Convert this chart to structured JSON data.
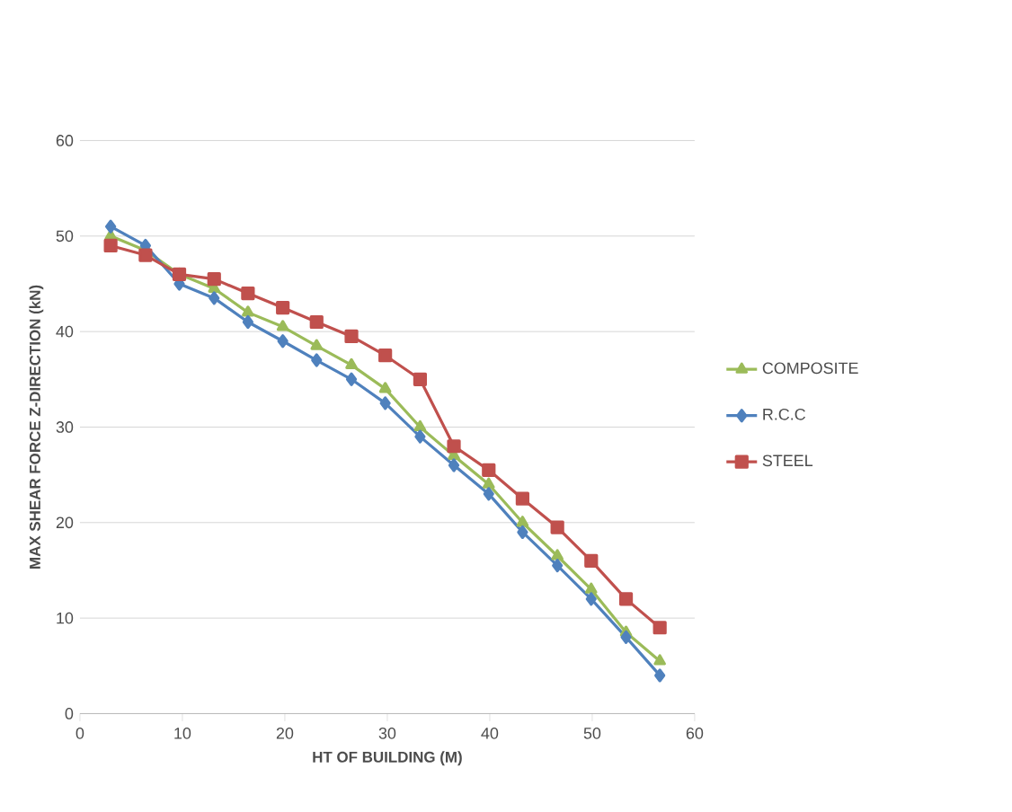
{
  "chart_data": {
    "type": "line",
    "xlabel": "HT OF BUILDING (M)",
    "ylabel": "MAX SHEAR FORCE Z-DIRECTION (kN)",
    "x": [
      3.0,
      6.4,
      9.7,
      13.1,
      16.4,
      19.8,
      23.1,
      26.5,
      29.8,
      33.2,
      36.5,
      39.9,
      43.2,
      46.6,
      49.9,
      53.3,
      56.6
    ],
    "series": [
      {
        "name": "COMPOSITE",
        "color": "#9bbb59",
        "marker": "triangle",
        "values": [
          50,
          48.5,
          46,
          44.5,
          42,
          40.5,
          38.5,
          36.5,
          34,
          30,
          27,
          24,
          20,
          16.5,
          13,
          8.5,
          5.5
        ]
      },
      {
        "name": "R.C.C",
        "color": "#4f81bd",
        "marker": "diamond",
        "values": [
          51,
          49,
          45,
          43.5,
          41,
          39,
          37,
          35,
          32.5,
          29,
          26,
          23,
          19,
          15.5,
          12,
          8,
          4
        ]
      },
      {
        "name": "STEEL",
        "color": "#c0504d",
        "marker": "square",
        "values": [
          49,
          48,
          46,
          45.5,
          44,
          42.5,
          41,
          39.5,
          37.5,
          35,
          28,
          25.5,
          22.5,
          19.5,
          16,
          12,
          9
        ]
      }
    ],
    "xlim": [
      0,
      60
    ],
    "xticks": [
      0,
      10,
      20,
      30,
      40,
      50,
      60
    ],
    "ylim": [
      0,
      60
    ],
    "yticks": [
      0,
      10,
      20,
      30,
      40,
      50,
      60
    ],
    "grid": "y",
    "legend": "right",
    "line_style": "solid"
  }
}
